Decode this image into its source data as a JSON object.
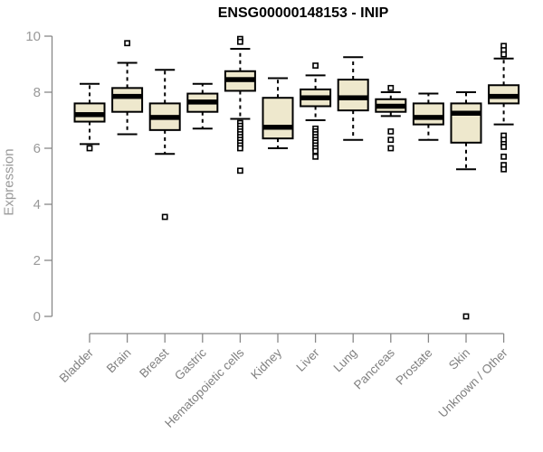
{
  "chart_data": {
    "type": "boxplot",
    "title": "ENSG00000148153 - INIP",
    "xlabel": "",
    "ylabel": "Expression",
    "ylim": [
      0,
      10
    ],
    "yticks": [
      0,
      2,
      4,
      6,
      8,
      10
    ],
    "categories": [
      "Bladder",
      "Brain",
      "Breast",
      "Gastric",
      "Hematopoietic cells",
      "Kidney",
      "Liver",
      "Lung",
      "Pancreas",
      "Prostate",
      "Skin",
      "Unknown / Other"
    ],
    "series": [
      {
        "category": "Bladder",
        "whislo": 6.15,
        "q1": 6.95,
        "med": 7.2,
        "q3": 7.6,
        "whishi": 8.3,
        "outliers": [
          6.0
        ]
      },
      {
        "category": "Brain",
        "whislo": 6.5,
        "q1": 7.3,
        "med": 7.85,
        "q3": 8.15,
        "whishi": 9.05,
        "outliers": [
          9.75
        ]
      },
      {
        "category": "Breast",
        "whislo": 5.8,
        "q1": 6.65,
        "med": 7.1,
        "q3": 7.6,
        "whishi": 8.8,
        "outliers": [
          3.55
        ]
      },
      {
        "category": "Gastric",
        "whislo": 6.7,
        "q1": 7.3,
        "med": 7.65,
        "q3": 7.95,
        "whishi": 8.3,
        "outliers": []
      },
      {
        "category": "Hematopoietic cells",
        "whislo": 7.05,
        "q1": 8.05,
        "med": 8.45,
        "q3": 8.75,
        "whishi": 9.55,
        "outliers": [
          9.9,
          9.8,
          6.9,
          6.8,
          6.7,
          6.6,
          6.5,
          6.4,
          6.3,
          6.2,
          6.1,
          6.0,
          5.2
        ]
      },
      {
        "category": "Kidney",
        "whislo": 6.0,
        "q1": 6.35,
        "med": 6.75,
        "q3": 7.8,
        "whishi": 8.5,
        "outliers": []
      },
      {
        "category": "Liver",
        "whislo": 7.0,
        "q1": 7.5,
        "med": 7.8,
        "q3": 8.1,
        "whishi": 8.6,
        "outliers": [
          8.95,
          6.7,
          6.6,
          6.5,
          6.4,
          6.3,
          6.2,
          6.1,
          6.0,
          5.9,
          5.7
        ]
      },
      {
        "category": "Lung",
        "whislo": 6.3,
        "q1": 7.35,
        "med": 7.8,
        "q3": 8.45,
        "whishi": 9.25,
        "outliers": []
      },
      {
        "category": "Pancreas",
        "whislo": 7.15,
        "q1": 7.3,
        "med": 7.5,
        "q3": 7.75,
        "whishi": 8.0,
        "outliers": [
          8.15,
          6.6,
          6.3,
          6.0
        ]
      },
      {
        "category": "Prostate",
        "whislo": 6.3,
        "q1": 6.85,
        "med": 7.1,
        "q3": 7.6,
        "whishi": 7.95,
        "outliers": []
      },
      {
        "category": "Skin",
        "whislo": 5.25,
        "q1": 6.2,
        "med": 7.25,
        "q3": 7.6,
        "whishi": 8.0,
        "outliers": [
          0.0
        ]
      },
      {
        "category": "Unknown / Other",
        "whislo": 6.85,
        "q1": 7.6,
        "med": 7.85,
        "q3": 8.25,
        "whishi": 9.2,
        "outliers": [
          9.65,
          9.5,
          9.35,
          6.45,
          6.3,
          6.15,
          6.05,
          5.7,
          5.4,
          5.25
        ]
      }
    ],
    "colors": {
      "box_fill": "#EEE8CD",
      "box_border": "#000000",
      "median": "#000000",
      "whisker": "#000000",
      "axis": "#888888",
      "tick_label": "#999999",
      "x_label": "#808080",
      "title": "#000000",
      "background": "#FFFFFF"
    },
    "layout": {
      "grid": false,
      "legend": "none",
      "x_label_rotation": 45,
      "y_axis_side": "left",
      "whisker_style": "dashed",
      "outlier_marker": "open-square"
    }
  }
}
